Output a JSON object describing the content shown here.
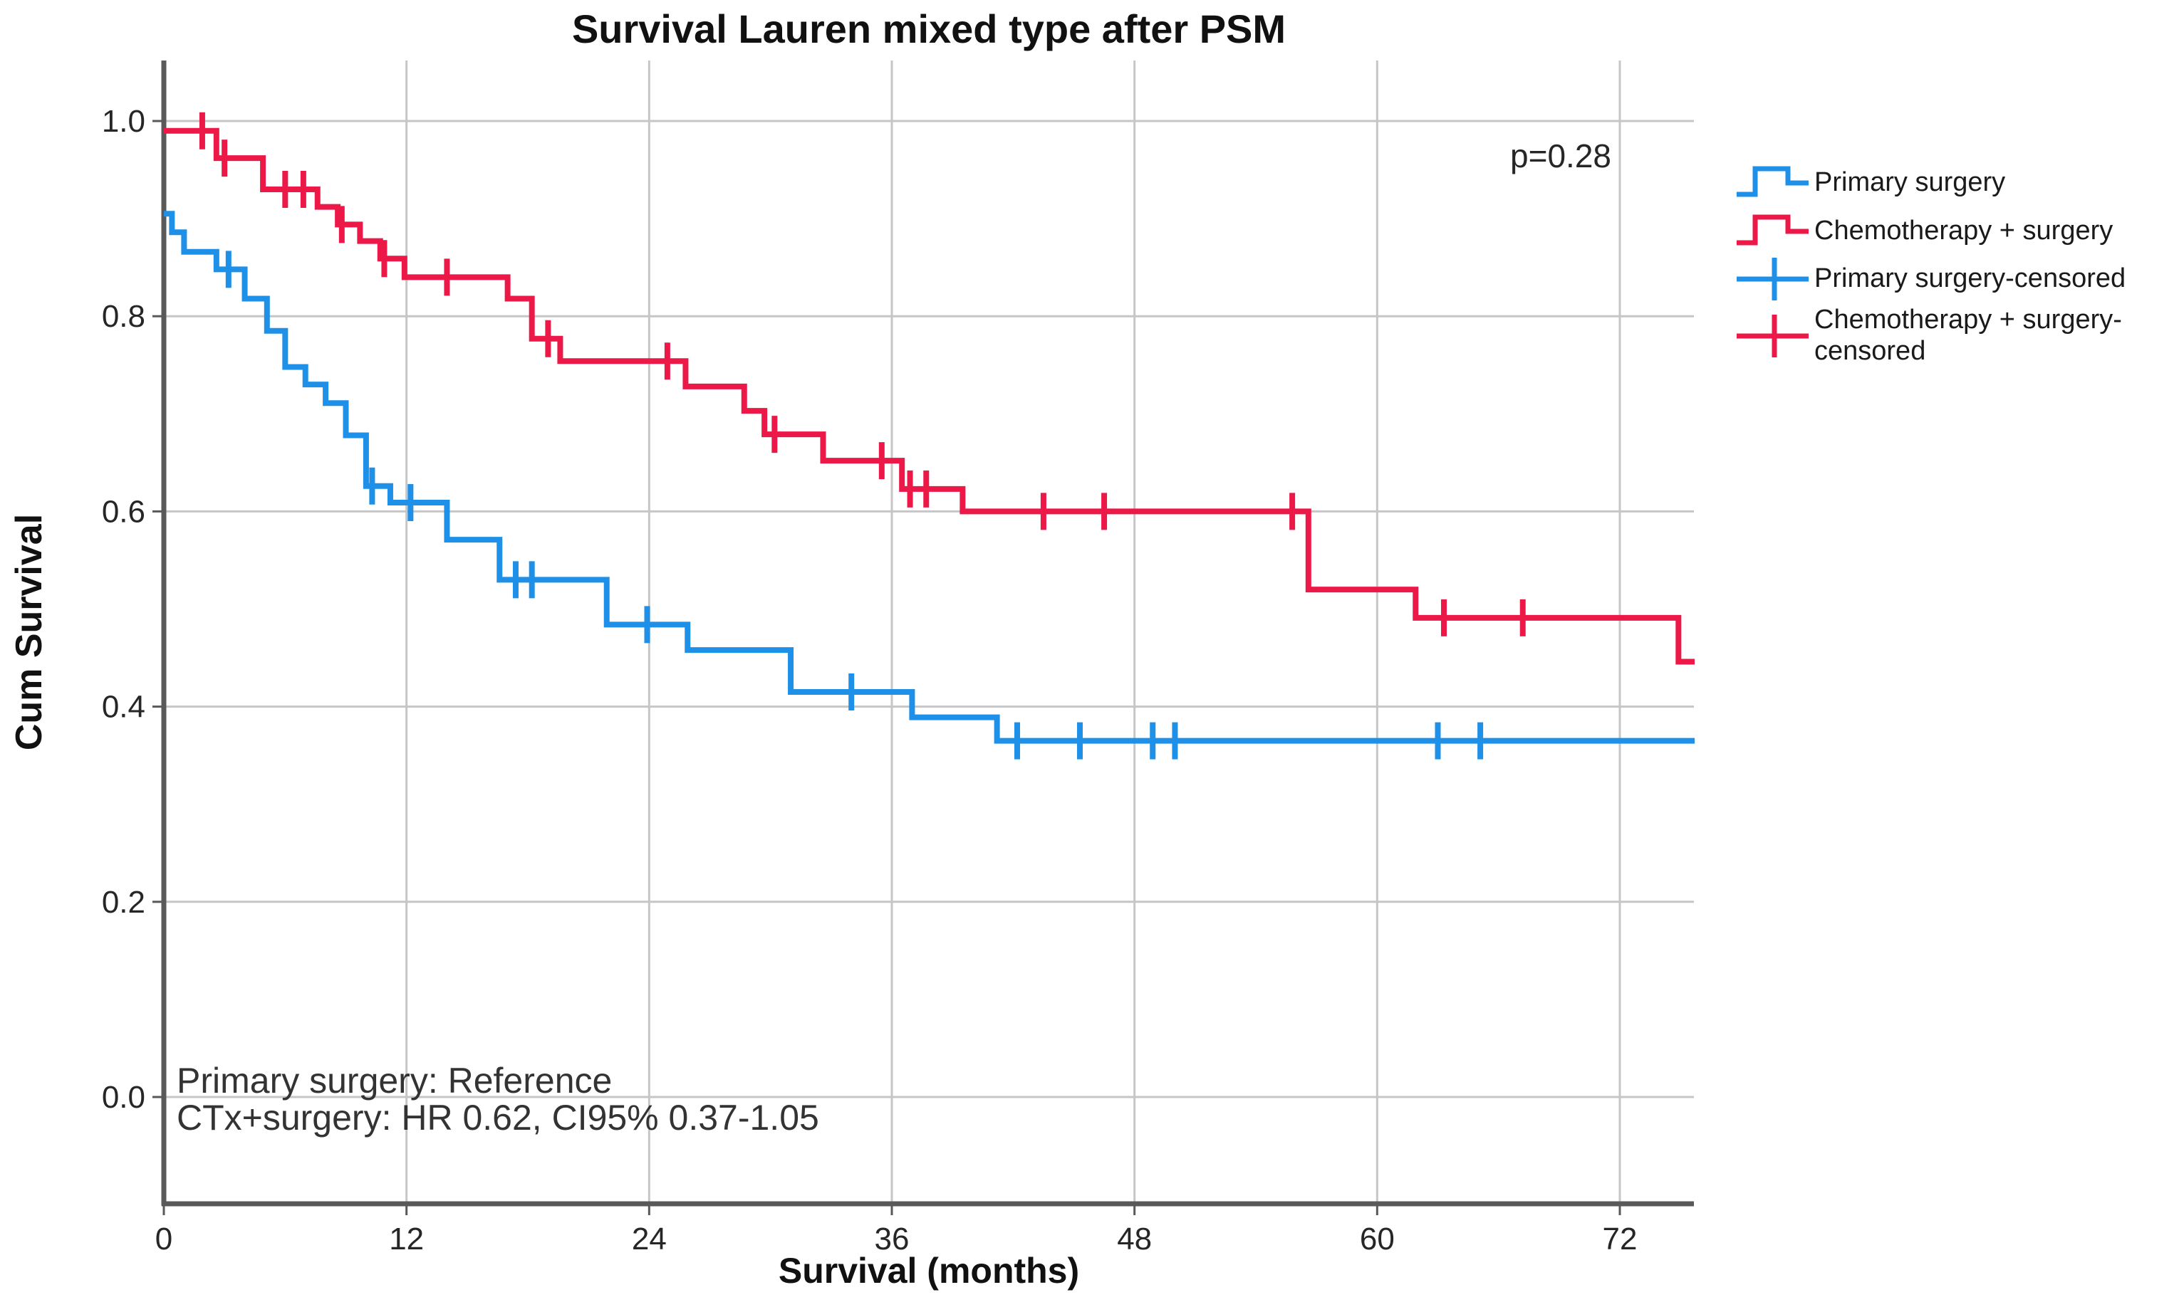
{
  "title": "Survival Lauren mixed type after PSM",
  "p_value_label": "p=0.28",
  "annotation": {
    "line1": "Primary surgery: Reference",
    "line2": "CTx+surgery: HR 0.62, CI95% 0.37-1.05"
  },
  "chart_data": {
    "type": "line",
    "subtype": "kaplan-meier-step",
    "title": "Survival Lauren mixed type after PSM",
    "xlabel": "Survival (months)",
    "ylabel": "Cum Survival",
    "xlim": [
      0,
      75.7
    ],
    "ylim": [
      0.0,
      1.0
    ],
    "x_max_plot": 75.7,
    "grid": true,
    "legend_position": "right",
    "x_ticks": [
      0,
      12,
      24,
      36,
      48,
      60,
      72
    ],
    "x_tick_labels": [
      "0",
      "12",
      "24",
      "36",
      "48",
      "60",
      "72"
    ],
    "y_ticks": [
      1.0,
      0.8,
      0.6,
      0.4,
      0.2,
      0.0
    ],
    "y_tick_labels": [
      "1.0",
      "0.8",
      "0.6",
      "0.4",
      "0.2",
      "0.0"
    ],
    "annotations": {
      "p_value": "p=0.28",
      "reference_line1": "Primary surgery: Reference",
      "reference_line2": "CTx+surgery: HR 0.62, CI95% 0.37-1.05"
    },
    "series": [
      {
        "name": "Primary surgery",
        "color": "#1E90E8",
        "points": [
          [
            0,
            0.905
          ],
          [
            0.4,
            0.886
          ],
          [
            1,
            0.866
          ],
          [
            2.6,
            0.848
          ],
          [
            4,
            0.818
          ],
          [
            5.1,
            0.785
          ],
          [
            6,
            0.748
          ],
          [
            7,
            0.73
          ],
          [
            8,
            0.711
          ],
          [
            9,
            0.678
          ],
          [
            10,
            0.626
          ],
          [
            11.2,
            0.609
          ],
          [
            14,
            0.571
          ],
          [
            16.6,
            0.53
          ],
          [
            21.9,
            0.484
          ],
          [
            25.9,
            0.458
          ],
          [
            31,
            0.415
          ],
          [
            37,
            0.389
          ],
          [
            41.2,
            0.365
          ]
        ],
        "censored": [
          [
            3.2,
            0.848
          ],
          [
            10.3,
            0.626
          ],
          [
            12.2,
            0.609
          ],
          [
            17.4,
            0.53
          ],
          [
            18.2,
            0.53
          ],
          [
            23.9,
            0.484
          ],
          [
            34,
            0.415
          ],
          [
            42.2,
            0.365
          ],
          [
            45.3,
            0.365
          ],
          [
            48.9,
            0.365
          ],
          [
            50,
            0.365
          ],
          [
            63,
            0.365
          ],
          [
            65.1,
            0.365
          ]
        ]
      },
      {
        "name": "Chemotherapy + surgery",
        "color": "#EC1848",
        "points": [
          [
            0,
            0.99
          ],
          [
            2.6,
            0.962
          ],
          [
            4.9,
            0.93
          ],
          [
            7.6,
            0.912
          ],
          [
            8.6,
            0.894
          ],
          [
            9.7,
            0.877
          ],
          [
            10.7,
            0.859
          ],
          [
            11.9,
            0.84
          ],
          [
            17,
            0.818
          ],
          [
            18.2,
            0.777
          ],
          [
            19.6,
            0.754
          ],
          [
            25.8,
            0.728
          ],
          [
            28.7,
            0.703
          ],
          [
            29.7,
            0.679
          ],
          [
            32.6,
            0.652
          ],
          [
            36.5,
            0.623
          ],
          [
            39.5,
            0.6
          ],
          [
            56.6,
            0.52
          ],
          [
            61.9,
            0.491
          ],
          [
            74.9,
            0.446
          ]
        ],
        "censored": [
          [
            1.9,
            0.99
          ],
          [
            3,
            0.962
          ],
          [
            6,
            0.93
          ],
          [
            6.9,
            0.93
          ],
          [
            8.8,
            0.894
          ],
          [
            10.9,
            0.859
          ],
          [
            14,
            0.84
          ],
          [
            19,
            0.777
          ],
          [
            24.9,
            0.754
          ],
          [
            30.2,
            0.679
          ],
          [
            35.5,
            0.652
          ],
          [
            36.9,
            0.623
          ],
          [
            37.7,
            0.623
          ],
          [
            43.5,
            0.6
          ],
          [
            46.5,
            0.6
          ],
          [
            55.8,
            0.6
          ],
          [
            63.3,
            0.491
          ],
          [
            67.2,
            0.491
          ]
        ]
      }
    ],
    "legend": [
      {
        "label": "Primary surgery",
        "marker": "step-line",
        "color": "#1E90E8"
      },
      {
        "label": "Chemotherapy + surgery",
        "marker": "step-line",
        "color": "#EC1848"
      },
      {
        "label": "Primary surgery-censored",
        "marker": "plus-line",
        "color": "#1E90E8"
      },
      {
        "label": "Chemotherapy + surgery-censored",
        "marker": "plus-line",
        "color": "#EC1848"
      }
    ]
  },
  "colors": {
    "primary_surgery": "#1E90E8",
    "chemo_surgery": "#EC1848",
    "axis": "#595959",
    "grid": "#C6C6C6",
    "text": "#262626",
    "background": "#FFFFFF"
  }
}
